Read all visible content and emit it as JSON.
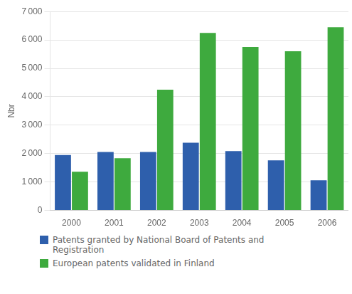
{
  "chart_data": {
    "type": "bar",
    "categories": [
      "2000",
      "2001",
      "2002",
      "2003",
      "2004",
      "2005",
      "2006"
    ],
    "series": [
      {
        "name": "Patents granted by National Board of Patents and\nRegistration",
        "color": "#2E5FAC",
        "values": [
          1950,
          2060,
          2060,
          2380,
          2090,
          1760,
          1060
        ]
      },
      {
        "name": "European patents validated in Finland",
        "color": "#3EAA3E",
        "values": [
          1360,
          1840,
          4250,
          6250,
          5750,
          5600,
          6450
        ]
      }
    ],
    "y_label": "Nbr",
    "ylim": [
      0,
      7000
    ],
    "yticks": [
      0,
      {
        "value": 1000,
        "label": "1 000"
      },
      {
        "value": 2000,
        "label": "2 000"
      },
      {
        "value": 3000,
        "label": "3 000"
      },
      {
        "value": 4000,
        "label": "4 000"
      },
      {
        "value": 5000,
        "label": "5 000"
      },
      {
        "value": 6000,
        "label": "6 000"
      },
      {
        "value": 7000,
        "label": "7 000"
      }
    ],
    "grid": true,
    "legend": "bottom"
  }
}
